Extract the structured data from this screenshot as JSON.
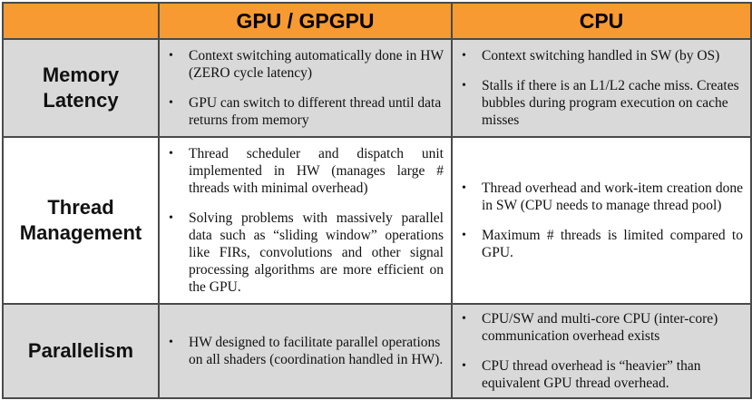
{
  "header": {
    "corner": "",
    "col1": "GPU / GPGPU",
    "col2": "CPU"
  },
  "rows": [
    {
      "label_line1": "Memory",
      "label_line2": "Latency",
      "gpu": [
        "Context switching automatically done in HW (ZERO cycle latency)",
        "GPU can switch to different thread until data returns from memory"
      ],
      "cpu": [
        "Context switching handled in SW (by OS)",
        "Stalls if there is an L1/L2 cache miss. Creates bubbles during program execution on cache misses"
      ]
    },
    {
      "label_line1": "Thread",
      "label_line2": "Management",
      "gpu": [
        "Thread scheduler and dispatch unit implemented in HW (manages large # threads with minimal overhead)",
        "Solving problems with massively parallel data such as “sliding window” operations like FIRs, convolutions and other signal processing algorithms are more efficient on the GPU."
      ],
      "cpu": [
        "Thread overhead and work-item creation done in SW (CPU needs to manage thread pool)",
        "Maximum # threads is limited compared to GPU."
      ]
    },
    {
      "label_line1": "Parallelism",
      "label_line2": "",
      "gpu": [
        "HW designed to facilitate parallel operations on all shaders (coordination handled in HW)."
      ],
      "cpu": [
        "CPU/SW and multi-core CPU (inter-core) communication overhead exists",
        "CPU thread overhead is “heavier” than equivalent GPU thread overhead."
      ]
    }
  ],
  "bullet_glyph": "•"
}
